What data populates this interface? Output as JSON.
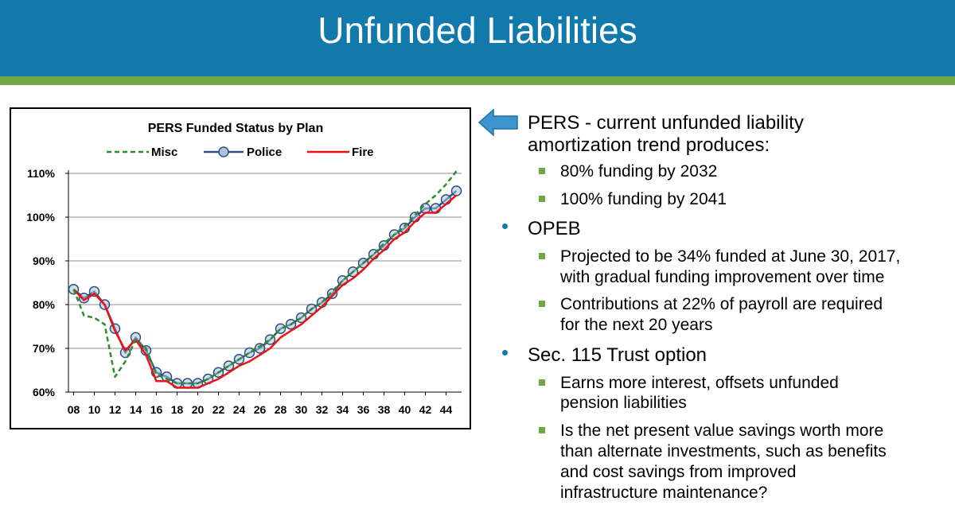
{
  "slide": {
    "title": "Unfunded Liabilities"
  },
  "colors": {
    "title_bar": "#1279ad",
    "stripe": "#6fa842",
    "misc": "#2e8b2e",
    "police": "#2f4f7f",
    "fire": "#ee1111"
  },
  "bullets": {
    "pers": {
      "line1": "PERS - current unfunded liability",
      "line2": "amortization trend produces:",
      "sub": [
        "80% funding by 2032",
        "100% funding by 2041"
      ]
    },
    "opeb": {
      "label": "OPEB",
      "sub1": [
        "Projected to be 34% funded at June 30, 2017,",
        "with gradual funding improvement over time"
      ],
      "sub2": [
        "Contributions at 22% of payroll are required",
        "for the next 20 years"
      ]
    },
    "trust": {
      "label": "Sec. 115 Trust option",
      "sub1": [
        "Earns more interest, offsets unfunded",
        "pension liabilities"
      ],
      "sub2": [
        "Is the net present value savings worth more",
        "than alternate investments, such as benefits",
        "and cost savings from improved",
        "infrastructure maintenance?"
      ]
    }
  },
  "chart_data": {
    "type": "line",
    "title": "PERS Funded Status by Plan",
    "xlabel": "",
    "ylabel": "",
    "x": [
      8,
      9,
      10,
      11,
      12,
      13,
      14,
      15,
      16,
      17,
      18,
      19,
      20,
      21,
      22,
      23,
      24,
      25,
      26,
      27,
      28,
      29,
      30,
      31,
      32,
      33,
      34,
      35,
      36,
      37,
      38,
      39,
      40,
      41,
      42,
      43,
      44,
      45
    ],
    "xticks": [
      "08",
      "10",
      "12",
      "14",
      "16",
      "18",
      "20",
      "22",
      "24",
      "26",
      "28",
      "30",
      "32",
      "34",
      "36",
      "38",
      "40",
      "42",
      "44"
    ],
    "xlim": [
      7.5,
      45.5
    ],
    "ylim": [
      60,
      110
    ],
    "yticks": [
      "60%",
      "70%",
      "80%",
      "90%",
      "100%",
      "110%"
    ],
    "grid": true,
    "legend": "top",
    "series": [
      {
        "name": "Misc",
        "style": "dashed",
        "values": [
          83.5,
          77.5,
          77,
          75.5,
          63.5,
          67,
          72,
          70,
          64,
          63,
          62,
          62,
          62,
          63,
          64.5,
          66,
          67.5,
          69,
          70.5,
          72,
          74.5,
          75.5,
          77,
          79,
          80.5,
          83,
          85.5,
          87.5,
          89.5,
          91.5,
          94,
          96,
          98,
          100.5,
          103,
          105,
          107.5,
          110.5
        ]
      },
      {
        "name": "Police",
        "style": "solid-markers",
        "values": [
          83.5,
          81.5,
          83,
          80,
          74.5,
          69,
          72.5,
          69.5,
          64.5,
          63.5,
          62,
          62,
          62,
          63,
          64.5,
          66,
          67.5,
          69,
          70,
          72,
          74.5,
          75.5,
          77,
          79,
          80.5,
          82.5,
          85.5,
          87.5,
          89.5,
          91.5,
          93.5,
          96,
          97.5,
          100,
          102,
          102,
          104,
          106
        ]
      },
      {
        "name": "Fire",
        "style": "solid",
        "values": [
          83.5,
          81,
          82.5,
          80,
          74,
          69.5,
          72,
          68.5,
          62.5,
          62.5,
          61,
          61,
          61,
          62,
          63,
          64.5,
          66,
          67,
          68.5,
          70,
          72.5,
          74,
          75.5,
          77.5,
          79.5,
          82,
          84.5,
          86,
          88,
          90.5,
          92.5,
          95,
          96.5,
          99,
          101,
          101,
          103,
          105
        ]
      }
    ]
  }
}
